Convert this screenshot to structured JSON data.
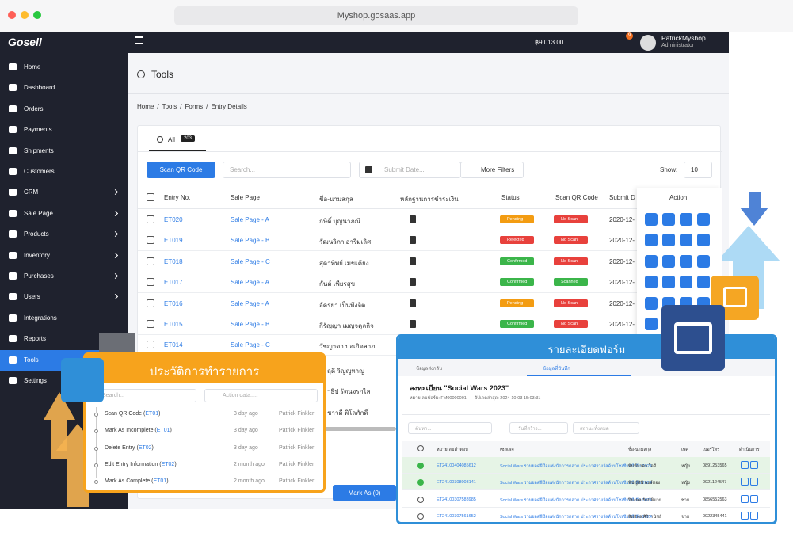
{
  "browser": {
    "url": "Myshop.gosaas.app"
  },
  "topbar": {
    "logo": "Gosell",
    "balance": "฿9,013.00",
    "notification_count": "9",
    "user_name": "PatrickMyshop",
    "user_role": "Administrator"
  },
  "sidebar": {
    "active": "Tools",
    "items": [
      {
        "label": "Home",
        "submenu": false
      },
      {
        "label": "Dashboard",
        "submenu": false
      },
      {
        "label": "Orders",
        "submenu": false
      },
      {
        "label": "Payments",
        "submenu": false
      },
      {
        "label": "Shipments",
        "submenu": false
      },
      {
        "label": "Customers",
        "submenu": false
      },
      {
        "label": "CRM",
        "submenu": true
      },
      {
        "label": "Sale Page",
        "submenu": true
      },
      {
        "label": "Products",
        "submenu": true
      },
      {
        "label": "Inventory",
        "submenu": true
      },
      {
        "label": "Purchases",
        "submenu": true
      },
      {
        "label": "Users",
        "submenu": true
      },
      {
        "label": "Integrations",
        "submenu": false
      },
      {
        "label": "Reports",
        "submenu": true
      },
      {
        "label": "Tools",
        "submenu": true
      },
      {
        "label": "Settings",
        "submenu": false
      }
    ]
  },
  "page": {
    "title": "Tools",
    "breadcrumb": [
      "Home",
      "Tools",
      "Forms",
      "Entry Details"
    ]
  },
  "tabs": [
    {
      "label": "All",
      "count": 203
    }
  ],
  "toolbar": {
    "scan_button": "Scan QR Code",
    "search_placeholder": "Search...",
    "date_placeholder": "Submit Date...",
    "filters_button": "More Filters",
    "show_label": "Show:",
    "show_value": "10"
  },
  "table": {
    "headers": [
      "Entry No.",
      "Sale Page",
      "ชื่อ-นามสกุล",
      "หลักฐานการชำระเงิน",
      "Status",
      "Scan QR Code",
      "Submit D",
      "Action"
    ],
    "rows": [
      {
        "entry": "ET020",
        "sale_page": "Sale Page - A",
        "name": "กษิดิ์ บุญนาภณี",
        "status": {
          "text": "Pending",
          "color": "#f39c12"
        },
        "scan": {
          "text": "No Scan",
          "color": "#e8413c"
        },
        "date": "2020-12-"
      },
      {
        "entry": "ET019",
        "sale_page": "Sale Page - B",
        "name": "วัฒนวิภา อารีมเลิศ",
        "status": {
          "text": "Rejected",
          "color": "#e8413c"
        },
        "scan": {
          "text": "No Scan",
          "color": "#e8413c"
        },
        "date": "2020-12-"
      },
      {
        "entry": "ET018",
        "sale_page": "Sale Page - C",
        "name": "สุดาทิพย์ เมฆเคียง",
        "status": {
          "text": "Confirmed",
          "color": "#3bb54a"
        },
        "scan": {
          "text": "No Scan",
          "color": "#e8413c"
        },
        "date": "2020-12-"
      },
      {
        "entry": "ET017",
        "sale_page": "Sale Page - A",
        "name": "กันต์ เพียรสุข",
        "status": {
          "text": "Confirmed",
          "color": "#3bb54a"
        },
        "scan": {
          "text": "Scanned",
          "color": "#3bb54a"
        },
        "date": "2020-12-"
      },
      {
        "entry": "ET016",
        "sale_page": "Sale Page - A",
        "name": "อัครยา เป็นพึงจิต",
        "status": {
          "text": "Pending",
          "color": "#f39c12"
        },
        "scan": {
          "text": "No Scan",
          "color": "#e8413c"
        },
        "date": "2020-12-"
      },
      {
        "entry": "ET015",
        "sale_page": "Sale Page - B",
        "name": "กีรัญญา เมญจคุลกิจ",
        "status": {
          "text": "Confirmed",
          "color": "#3bb54a"
        },
        "scan": {
          "text": "No Scan",
          "color": "#e8413c"
        },
        "date": "2020-12-"
      },
      {
        "entry": "ET014",
        "sale_page": "Sale Page - C",
        "name": "วัชญาดา บ่อเกิดลาภ"
      }
    ],
    "partial_names": [
      "ฤดี วิญญูหาญ",
      "าธิป รัตนจรกไล",
      "ชาวดี พิโลภักดิ์"
    ]
  },
  "bulk_action": "Mark As (0)",
  "history_popup": {
    "title": "ประวัติการทำรายการ",
    "search_placeholder": "Search...",
    "date_placeholder": "Action data.....",
    "items": [
      {
        "action": "Scan QR Code",
        "entry": "ET01",
        "time": "3 day ago",
        "user": "Patrick Finkler"
      },
      {
        "action": "Mark As Incomplete",
        "entry": "ET01",
        "time": "3 day ago",
        "user": "Patrick Finkler"
      },
      {
        "action": "Delete Entry",
        "entry": "ET02",
        "time": "3 day ago",
        "user": "Patrick Finkler"
      },
      {
        "action": "Edit Entry Information",
        "entry": "ET02",
        "time": "2 month ago",
        "user": "Patrick Finkler"
      },
      {
        "action": "Mark As Complete",
        "entry": "ET01",
        "time": "2 month ago",
        "user": "Patrick Finkler"
      }
    ]
  },
  "form_popup": {
    "title": "รายละเอียดฟอร์ม",
    "tabs": [
      "ข้อมูลส่งกลับ",
      "ข้อมูลที่บันทึก"
    ],
    "form_title": "ลงทะเบียน \"Social Wars 2023\"",
    "form_number": "หมายเลขฟอร์ม: FM00000001",
    "updated": "อัปเดตล่าสุด: 2024-10-03 15:03:31",
    "search_placeholder": "ค้นหา...",
    "date_placeholder": "วันที่สร้าง...",
    "status_filter": "สถานะทั้งหมด",
    "headers": [
      "หมายเลขคำตอบ",
      "เซลเพจ",
      "ชื่อ-นามสกุล",
      "เพศ",
      "เบอร์โทร",
      "ดำเนินการ"
    ],
    "rows": [
      {
        "id": "ET24100404085612",
        "sale_page": "Social Wars รวมยอดฝีมือแห่งนักการตลาด ประกาศรางวัลด้านโซเชียลมีเดีย 2024",
        "name": "พิมพ์มาดา ใจดี",
        "gender": "หญิง",
        "phone": "0891253565",
        "highlight": true
      },
      {
        "id": "ET24100308003141",
        "sale_page": "Social Wars รวมยอดฝีมือแห่งนักการตลาด ประกาศรางวัลด้านโซเชียลมีเดีย 2024",
        "name": "พิชญ์สินี พงษ์ทอง",
        "gender": "หญิง",
        "phone": "0921124547",
        "highlight": true
      },
      {
        "id": "ET24100307583985",
        "sale_page": "Social Wars รวมยอดฝีมือแห่งนักการตลาด ประกาศรางวัลด้านโซเชียลมีเดีย 2024",
        "name": "ปิยะพล รัตน์พิมาย",
        "gender": "ชาย",
        "phone": "0856552563",
        "highlight": false
      },
      {
        "id": "ET24100307561652",
        "sale_page": "Social Wars รวมยอดฝีมือแห่งนักการตลาด ประกาศรางวัลด้านโซเชียลมีเดีย 2024",
        "name": "สิทธิพล ศิริวานิชย์",
        "gender": "ชาย",
        "phone": "0922345441",
        "highlight": false
      }
    ]
  }
}
